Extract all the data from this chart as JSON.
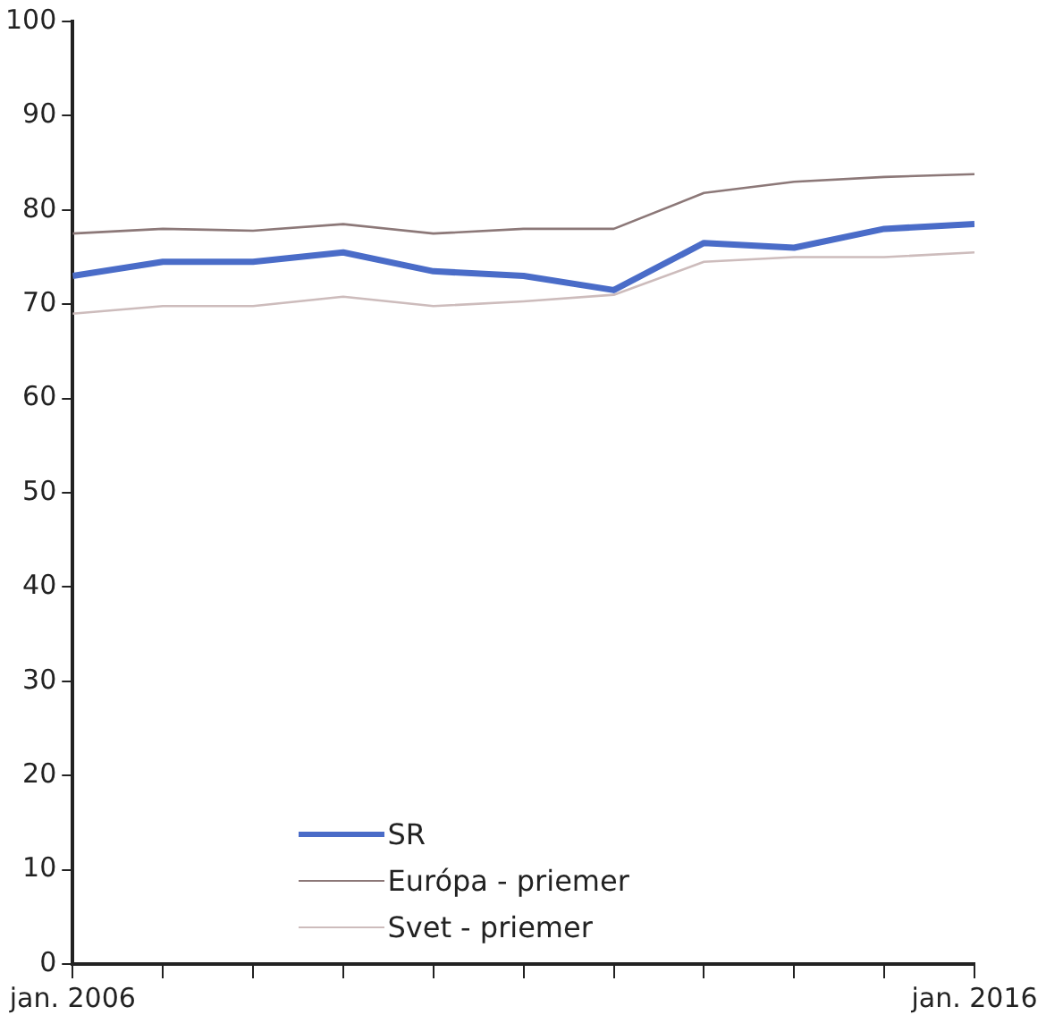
{
  "chart_data": {
    "type": "line",
    "x": [
      "2006-01",
      "2007-01",
      "2008-01",
      "2009-01",
      "2010-01",
      "2011-01",
      "2012-01",
      "2013-01",
      "2014-01",
      "2015-01",
      "2016-01"
    ],
    "series": [
      {
        "name": "SR",
        "color": "#4a6cc8",
        "values": [
          73,
          74.5,
          74.5,
          75.5,
          73.5,
          73,
          71.5,
          76.5,
          76,
          78,
          78.5
        ]
      },
      {
        "name": "Európa - priemer",
        "color": "#8c7878",
        "values": [
          77.5,
          78,
          77.8,
          78.5,
          77.5,
          78,
          78,
          81.8,
          83,
          83.5,
          83.8
        ]
      },
      {
        "name": "Svet - priemer",
        "color": "#cdbcbc",
        "values": [
          69,
          69.8,
          69.8,
          70.8,
          69.8,
          70.3,
          71,
          74.5,
          75,
          75,
          75.5
        ]
      }
    ],
    "xlim": [
      "2006-01",
      "2016-01"
    ],
    "xticks": [
      {
        "value": "2006-01",
        "label": "jan. 2006"
      },
      {
        "value": "2007-01",
        "label": null
      },
      {
        "value": "2008-01",
        "label": null
      },
      {
        "value": "2009-01",
        "label": null
      },
      {
        "value": "2010-01",
        "label": null
      },
      {
        "value": "2011-01",
        "label": null
      },
      {
        "value": "2012-01",
        "label": null
      },
      {
        "value": "2013-01",
        "label": null
      },
      {
        "value": "2014-01",
        "label": null
      },
      {
        "value": "2015-01",
        "label": null
      },
      {
        "value": "2016-01",
        "label": "jan. 2016"
      }
    ],
    "ylim": [
      0,
      100
    ],
    "yticks": [
      0,
      10,
      20,
      30,
      40,
      50,
      60,
      70,
      80,
      90,
      100
    ],
    "grid": false,
    "legend": "bottom",
    "marker": "none",
    "line_style": "solid"
  }
}
